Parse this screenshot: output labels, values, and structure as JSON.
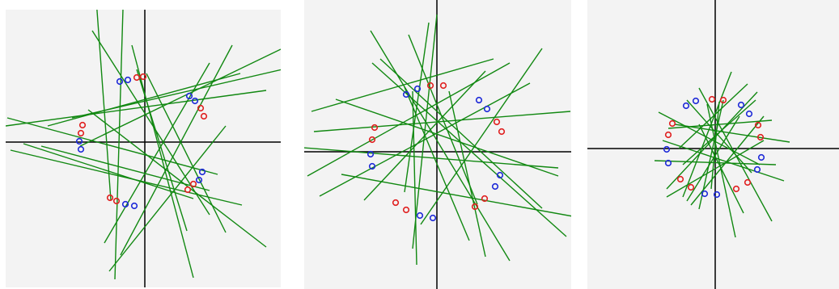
{
  "figure": {
    "background_color": "#f3f3f3",
    "axis_color": "#000000",
    "line_color": "#118811",
    "marker_colors": {
      "red": "#e02020",
      "blue": "#1e2ad8"
    }
  },
  "panels": [
    {
      "id": "panel-1",
      "axes": {
        "x": 0,
        "y": 0
      },
      "markers": [
        {
          "x": -10,
          "y": 80,
          "color": "red"
        },
        {
          "x": -2,
          "y": 81,
          "color": "red"
        },
        {
          "x": -31,
          "y": 75,
          "color": "blue"
        },
        {
          "x": -21,
          "y": 77,
          "color": "blue"
        },
        {
          "x": 55,
          "y": 57,
          "color": "blue"
        },
        {
          "x": 62,
          "y": 51,
          "color": "blue"
        },
        {
          "x": 69,
          "y": 42,
          "color": "red"
        },
        {
          "x": 73,
          "y": 32,
          "color": "red"
        },
        {
          "x": -77,
          "y": 21,
          "color": "red"
        },
        {
          "x": -79,
          "y": 11,
          "color": "red"
        },
        {
          "x": -81,
          "y": 1,
          "color": "blue"
        },
        {
          "x": -79,
          "y": -9,
          "color": "blue"
        },
        {
          "x": 71,
          "y": -37,
          "color": "blue"
        },
        {
          "x": 67,
          "y": -47,
          "color": "blue"
        },
        {
          "x": 60,
          "y": -52,
          "color": "red"
        },
        {
          "x": 53,
          "y": -59,
          "color": "red"
        },
        {
          "x": -43,
          "y": -69,
          "color": "red"
        },
        {
          "x": -35,
          "y": -73,
          "color": "red"
        },
        {
          "x": -24,
          "y": -77,
          "color": "blue"
        },
        {
          "x": -13,
          "y": -79,
          "color": "blue"
        }
      ],
      "lines": [
        [
          -60,
          176,
          -42,
          -72
        ],
        [
          -27,
          165,
          -37,
          -170
        ],
        [
          -65,
          138,
          80,
          -90
        ],
        [
          -16,
          120,
          60,
          -168
        ],
        [
          -80,
          -5,
          168,
          115
        ],
        [
          -172,
          20,
          150,
          64
        ],
        [
          -166,
          -10,
          120,
          -78
        ],
        [
          -150,
          -2,
          60,
          -70
        ],
        [
          -120,
          20,
          118,
          85
        ],
        [
          -170,
          30,
          90,
          -40
        ],
        [
          -30,
          -140,
          108,
          120
        ],
        [
          -50,
          -125,
          80,
          98
        ],
        [
          -10,
          90,
          52,
          -110
        ],
        [
          -44,
          -160,
          100,
          20
        ],
        [
          2,
          85,
          100,
          -112
        ],
        [
          -90,
          30,
          170,
          90
        ],
        [
          -70,
          40,
          150,
          -130
        ],
        [
          -128,
          -5,
          80,
          -60
        ]
      ]
    },
    {
      "id": "panel-2",
      "axes": {
        "x": 0,
        "y": 0
      },
      "markers": [
        {
          "x": -8,
          "y": 82,
          "color": "red"
        },
        {
          "x": 8,
          "y": 82,
          "color": "red"
        },
        {
          "x": -38,
          "y": 71,
          "color": "blue"
        },
        {
          "x": -24,
          "y": 78,
          "color": "blue"
        },
        {
          "x": 52,
          "y": 64,
          "color": "blue"
        },
        {
          "x": 62,
          "y": 53,
          "color": "blue"
        },
        {
          "x": 74,
          "y": 37,
          "color": "red"
        },
        {
          "x": 80,
          "y": 25,
          "color": "red"
        },
        {
          "x": -77,
          "y": 30,
          "color": "red"
        },
        {
          "x": -80,
          "y": 15,
          "color": "red"
        },
        {
          "x": -82,
          "y": -3,
          "color": "blue"
        },
        {
          "x": -80,
          "y": -18,
          "color": "blue"
        },
        {
          "x": 78,
          "y": -29,
          "color": "blue"
        },
        {
          "x": 72,
          "y": -43,
          "color": "blue"
        },
        {
          "x": 59,
          "y": -58,
          "color": "red"
        },
        {
          "x": 47,
          "y": -68,
          "color": "red"
        },
        {
          "x": -51,
          "y": -63,
          "color": "red"
        },
        {
          "x": -38,
          "y": -72,
          "color": "red"
        },
        {
          "x": -21,
          "y": -79,
          "color": "blue"
        },
        {
          "x": -5,
          "y": -82,
          "color": "blue"
        }
      ],
      "lines": [
        [
          0,
          170,
          -30,
          -120
        ],
        [
          -82,
          150,
          90,
          -135
        ],
        [
          -152,
          25,
          165,
          50
        ],
        [
          -155,
          50,
          70,
          115
        ],
        [
          -125,
          65,
          150,
          -30
        ],
        [
          -160,
          -30,
          90,
          110
        ],
        [
          -145,
          -55,
          115,
          85
        ],
        [
          -80,
          110,
          160,
          -105
        ],
        [
          -30,
          75,
          -25,
          -140
        ],
        [
          -40,
          80,
          40,
          -110
        ],
        [
          -90,
          -60,
          60,
          100
        ],
        [
          -20,
          -90,
          130,
          128
        ],
        [
          -10,
          160,
          -40,
          -50
        ],
        [
          -35,
          145,
          50,
          -65
        ],
        [
          15,
          75,
          60,
          -130
        ],
        [
          -70,
          115,
          130,
          -70
        ],
        [
          -165,
          5,
          150,
          -20
        ],
        [
          -118,
          -28,
          168,
          -80
        ]
      ]
    },
    {
      "id": "panel-3",
      "axes": {
        "x": 0,
        "y": 0
      },
      "markers": [
        {
          "x": -4,
          "y": 61,
          "color": "red"
        },
        {
          "x": 10,
          "y": 60,
          "color": "red"
        },
        {
          "x": -36,
          "y": 53,
          "color": "blue"
        },
        {
          "x": -24,
          "y": 59,
          "color": "blue"
        },
        {
          "x": 32,
          "y": 54,
          "color": "blue"
        },
        {
          "x": 42,
          "y": 43,
          "color": "blue"
        },
        {
          "x": 53,
          "y": 29,
          "color": "red"
        },
        {
          "x": 56,
          "y": 14,
          "color": "red"
        },
        {
          "x": -53,
          "y": 31,
          "color": "red"
        },
        {
          "x": -58,
          "y": 17,
          "color": "red"
        },
        {
          "x": -60,
          "y": -1,
          "color": "blue"
        },
        {
          "x": -58,
          "y": -18,
          "color": "blue"
        },
        {
          "x": 57,
          "y": -11,
          "color": "blue"
        },
        {
          "x": 52,
          "y": -26,
          "color": "blue"
        },
        {
          "x": 40,
          "y": -42,
          "color": "red"
        },
        {
          "x": 26,
          "y": -50,
          "color": "red"
        },
        {
          "x": -43,
          "y": -38,
          "color": "red"
        },
        {
          "x": -30,
          "y": -48,
          "color": "red"
        },
        {
          "x": -13,
          "y": -56,
          "color": "blue"
        },
        {
          "x": 2,
          "y": -57,
          "color": "blue"
        }
      ],
      "lines": [
        [
          -70,
          45,
          55,
          -20
        ],
        [
          -20,
          75,
          70,
          -90
        ],
        [
          -35,
          60,
          45,
          -30
        ],
        [
          20,
          95,
          -40,
          -60
        ],
        [
          -60,
          -50,
          52,
          70
        ],
        [
          -50,
          30,
          92,
          8
        ],
        [
          -75,
          -15,
          75,
          -20
        ],
        [
          -30,
          -70,
          60,
          40
        ],
        [
          -10,
          55,
          25,
          -110
        ],
        [
          -65,
          10,
          85,
          -40
        ],
        [
          10,
          60,
          -20,
          -75
        ],
        [
          -40,
          -20,
          50,
          60
        ],
        [
          -58,
          25,
          70,
          35
        ],
        [
          -35,
          -65,
          30,
          40
        ],
        [
          -45,
          0,
          40,
          80
        ],
        [
          5,
          58,
          -5,
          -50
        ],
        [
          -20,
          30,
          35,
          -80
        ],
        [
          -60,
          -60,
          60,
          10
        ]
      ]
    }
  ]
}
